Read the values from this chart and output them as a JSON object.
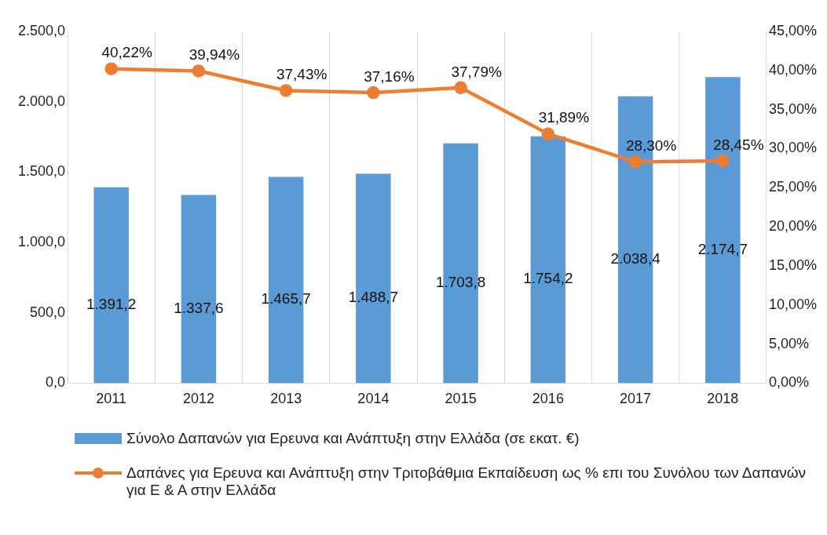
{
  "chart_data": {
    "type": "bar",
    "categories": [
      "2011",
      "2012",
      "2013",
      "2014",
      "2015",
      "2016",
      "2017",
      "2018"
    ],
    "series": [
      {
        "name": "Σύνολο Δαπανών για Ερευνα και Ανάπτυξη στην Ελλάδα (σε εκατ. €)",
        "color": "#5b9bd5",
        "values": [
          1391.2,
          1337.6,
          1465.7,
          1488.7,
          1703.8,
          1754.2,
          2038.4,
          2174.7
        ],
        "value_labels": [
          "1.391,2",
          "1.337,6",
          "1.465,7",
          "1.488,7",
          "1.703,8",
          "1.754,2",
          "2.038,4",
          "2.174,7"
        ]
      },
      {
        "name": "Δαπάνες για Ερευνα και Ανάπτυξη στην Τριτοβάθμια Εκπαίδευση ως % επι του Συνόλου των Δαπανών για Ε & Α στην Ελλάδα",
        "type": "line",
        "axis": "y2",
        "color": "#ed7d31",
        "values": [
          40.22,
          39.94,
          37.43,
          37.16,
          37.79,
          31.89,
          28.3,
          28.45
        ],
        "value_labels": [
          "40,22%",
          "39,94%",
          "37,43%",
          "37,16%",
          "37,79%",
          "31,89%",
          "28,30%",
          "28,45%"
        ]
      }
    ],
    "ylim": [
      0,
      2500
    ],
    "yticks": [
      {
        "value": 0,
        "label": "0,0"
      },
      {
        "value": 500,
        "label": "500,0"
      },
      {
        "value": 1000,
        "label": "1.000,0"
      },
      {
        "value": 1500,
        "label": "1.500,0"
      },
      {
        "value": 2000,
        "label": "2.000,0"
      },
      {
        "value": 2500,
        "label": "2.500,0"
      }
    ],
    "y2lim": [
      0,
      45
    ],
    "y2ticks": [
      {
        "value": 0,
        "label": "0,00%"
      },
      {
        "value": 5,
        "label": "5,00%"
      },
      {
        "value": 10,
        "label": "10,00%"
      },
      {
        "value": 15,
        "label": "15,00%"
      },
      {
        "value": 20,
        "label": "20,00%"
      },
      {
        "value": 25,
        "label": "25,00%"
      },
      {
        "value": 30,
        "label": "30,00%"
      },
      {
        "value": 35,
        "label": "35,00%"
      },
      {
        "value": 40,
        "label": "40,00%"
      },
      {
        "value": 45,
        "label": "45,00%"
      }
    ],
    "grid": "x",
    "legend": "bottom",
    "marker": "circle",
    "line_style": "solid"
  }
}
